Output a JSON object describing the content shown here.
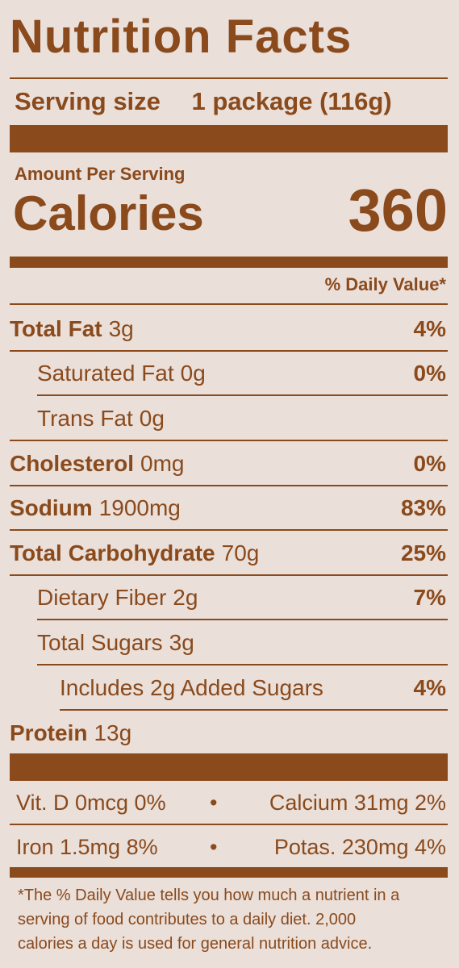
{
  "title": "Nutrition Facts",
  "serving": {
    "label": "Serving size",
    "value": "1 package (116g)"
  },
  "amount_per_serving": "Amount Per Serving",
  "calories": {
    "label": "Calories",
    "value": 360
  },
  "daily_value_header": "% Daily Value*",
  "nutrients": [
    {
      "name": "Total Fat",
      "amount": "3g",
      "dv": "4%"
    },
    {
      "name": "Saturated Fat",
      "amount": "0g",
      "dv": "0%"
    },
    {
      "name": "Trans Fat",
      "amount": "0g"
    },
    {
      "name": "Cholesterol",
      "amount": "0mg",
      "dv": "0%"
    },
    {
      "name": "Sodium",
      "amount": "1900mg",
      "dv": "83%"
    },
    {
      "name": "Total Carbohydrate",
      "amount": "70g",
      "dv": "25%"
    },
    {
      "name": "Dietary Fiber",
      "amount": "2g",
      "dv": "7%"
    },
    {
      "name": "Total Sugars",
      "amount": "3g"
    },
    {
      "name": "Includes 2g Added Sugars",
      "dv": "4%"
    },
    {
      "name": "Protein",
      "amount": "13g"
    }
  ],
  "vitamins": [
    [
      "Vit. D 0mcg 0%",
      "Calcium 31mg 2%"
    ],
    [
      "Iron 1.5mg 8%",
      "Potas. 230mg 4%"
    ]
  ],
  "footnote": [
    "*The % Daily Value tells you how much a nutrient in a",
    "serving of food contributes to a daily diet. 2,000",
    "calories a day is used for general nutrition advice."
  ]
}
